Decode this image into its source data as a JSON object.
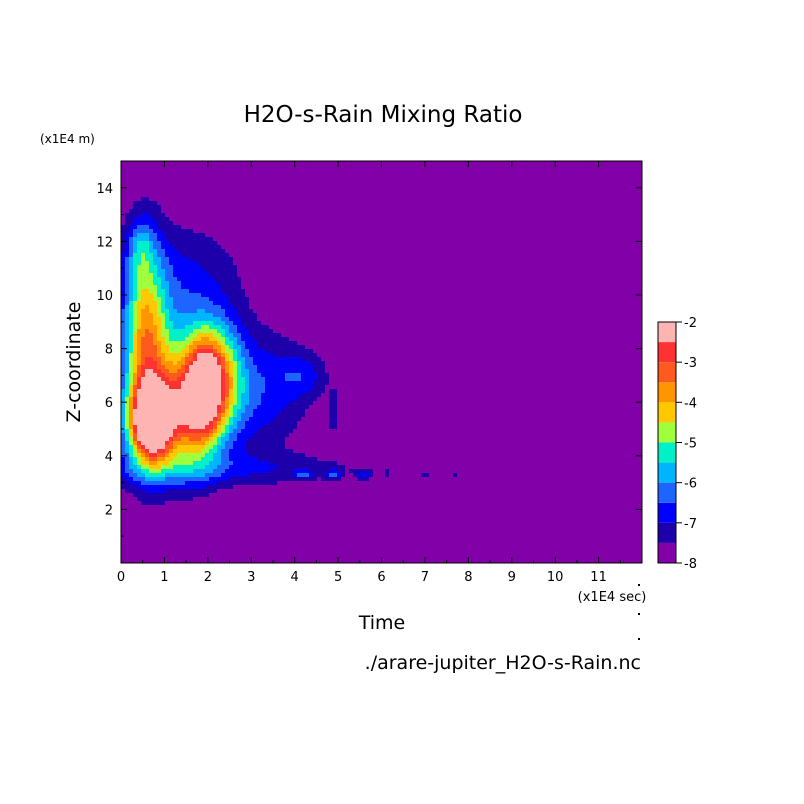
{
  "chart_data": {
    "type": "heatmap",
    "title": "H2O-s-Rain Mixing Ratio",
    "xlabel": "Time",
    "ylabel": "Z-coordinate",
    "x_scale_label": "(x1E4 sec)",
    "y_scale_label": "(x1E4 m)",
    "source_label": "./arare-jupiter_H2O-s-Rain.nc",
    "xlim": [
      0,
      12
    ],
    "ylim": [
      0,
      15
    ],
    "x_ticks": [
      0,
      1,
      2,
      3,
      4,
      5,
      6,
      7,
      8,
      9,
      10,
      11
    ],
    "y_ticks": [
      2,
      4,
      6,
      8,
      10,
      12,
      14
    ],
    "background_color": "#8200a8",
    "colorbar": {
      "tick_labels": [
        "-2",
        "-3",
        "-4",
        "-5",
        "-6",
        "-7",
        "-8"
      ],
      "tick_values": [
        -2,
        -3,
        -4,
        -5,
        -6,
        -7,
        -8
      ],
      "levels": [
        {
          "from": -8.0,
          "to": -7.5,
          "color": "#8200a8"
        },
        {
          "from": -7.5,
          "to": -7.0,
          "color": "#1e00aa"
        },
        {
          "from": -7.0,
          "to": -6.5,
          "color": "#0000ff"
        },
        {
          "from": -6.5,
          "to": -6.0,
          "color": "#1e64ff"
        },
        {
          "from": -6.0,
          "to": -5.5,
          "color": "#00b4ff"
        },
        {
          "from": -5.5,
          "to": -5.0,
          "color": "#00f0c8"
        },
        {
          "from": -5.0,
          "to": -4.5,
          "color": "#a0ff3c"
        },
        {
          "from": -4.5,
          "to": -4.0,
          "color": "#ffc800"
        },
        {
          "from": -4.0,
          "to": -3.5,
          "color": "#ff9600"
        },
        {
          "from": -3.5,
          "to": -3.0,
          "color": "#ff5a1e"
        },
        {
          "from": -3.0,
          "to": -2.5,
          "color": "#ff3232"
        },
        {
          "from": -2.5,
          "to": -2.0,
          "color": "#ffb4b4"
        }
      ]
    },
    "blobs": [
      {
        "x": 0.55,
        "y": 8.0,
        "sx": 0.35,
        "sy": 2.6,
        "v": 4.2
      },
      {
        "x": 0.7,
        "y": 5.2,
        "sx": 0.3,
        "sy": 0.9,
        "v": 5.2
      },
      {
        "x": 1.4,
        "y": 6.3,
        "sx": 0.55,
        "sy": 1.9,
        "v": 3.6
      },
      {
        "x": 1.9,
        "y": 6.5,
        "sx": 0.3,
        "sy": 1.4,
        "v": 3.7
      },
      {
        "x": 2.3,
        "y": 7.0,
        "sx": 0.4,
        "sy": 1.4,
        "v": 3.1
      },
      {
        "x": 1.1,
        "y": 5.3,
        "sx": 0.9,
        "sy": 1.2,
        "v": 2.0
      },
      {
        "x": 3.3,
        "y": 6.5,
        "sx": 0.7,
        "sy": 1.5,
        "v": 1.4
      },
      {
        "x": 1.4,
        "y": 10.6,
        "sx": 1.0,
        "sy": 1.5,
        "v": 1.1
      },
      {
        "x": 4.2,
        "y": 7.0,
        "sx": 0.4,
        "sy": 0.6,
        "v": 1.0
      },
      {
        "x": 0.45,
        "y": 11.8,
        "sx": 0.2,
        "sy": 0.7,
        "v": 1.2
      },
      {
        "x": 2.4,
        "y": 3.5,
        "sx": 2.5,
        "sy": 0.45,
        "v": 1.0
      },
      {
        "x": 4.9,
        "y": 5.6,
        "sx": 0.1,
        "sy": 0.6,
        "v": 0.9
      }
    ],
    "streaks": [
      {
        "x0": 4.0,
        "x1": 6.2,
        "y": 3.3,
        "t": 0.3
      },
      {
        "x0": 6.5,
        "x1": 9.4,
        "y": 3.3,
        "t": 0.12
      }
    ]
  }
}
